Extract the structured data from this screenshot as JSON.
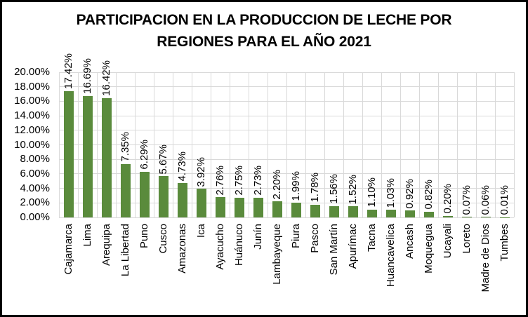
{
  "chart_data": {
    "type": "bar",
    "title": "PARTICIPACION EN LA PRODUCCION DE LECHE POR REGIONES PARA EL AÑO 2021",
    "title_lines": [
      "PARTICIPACION EN LA PRODUCCION DE LECHE POR",
      "REGIONES PARA EL AÑO 2021"
    ],
    "categories": [
      "Cajamarca",
      "Lima",
      "Arequipa",
      "La Libertad",
      "Puno",
      "Cusco",
      "Amazonas",
      "Ica",
      "Ayacucho",
      "Huánuco",
      "Junín",
      "Lambayeque",
      "Piura",
      "Pasco",
      "San Martín",
      "Apurímac",
      "Tacna",
      "Huancavelica",
      "Ancash",
      "Moquegua",
      "Ucayali",
      "Loreto",
      "Madre de Dios",
      "Tumbes"
    ],
    "values": [
      17.42,
      16.69,
      16.42,
      7.35,
      6.29,
      5.67,
      4.73,
      3.92,
      2.76,
      2.75,
      2.73,
      2.2,
      1.99,
      1.78,
      1.56,
      1.52,
      1.1,
      1.03,
      0.92,
      0.82,
      0.2,
      0.07,
      0.06,
      0.01
    ],
    "data_labels": [
      "17.42%",
      "16.69%",
      "16.42%",
      "7.35%",
      "6.29%",
      "5.67%",
      "4.73%",
      "3.92%",
      "2.76%",
      "2.75%",
      "2.73%",
      "2.20%",
      "1.99%",
      "1.78%",
      "1.56%",
      "1.52%",
      "1.10%",
      "1.03%",
      "0.92%",
      "0.82%",
      "0.20%",
      "0.07%",
      "0.06%",
      "0.01%"
    ],
    "y_ticks": [
      "0.00%",
      "2.00%",
      "4.00%",
      "6.00%",
      "8.00%",
      "10.00%",
      "12.00%",
      "14.00%",
      "16.00%",
      "18.00%",
      "20.00%"
    ],
    "ylim": [
      0,
      20
    ],
    "y_tick_step": 2,
    "xlabel": "",
    "ylabel": "",
    "legend": "none",
    "grid": "both",
    "data_label_rotation": 90,
    "category_label_rotation": 90,
    "bar_color": "#5A8B3C",
    "gridline_color": "#D9D9D9",
    "text_color": "#000000",
    "frame_color": "#000000",
    "background": "#FFFFFF"
  }
}
